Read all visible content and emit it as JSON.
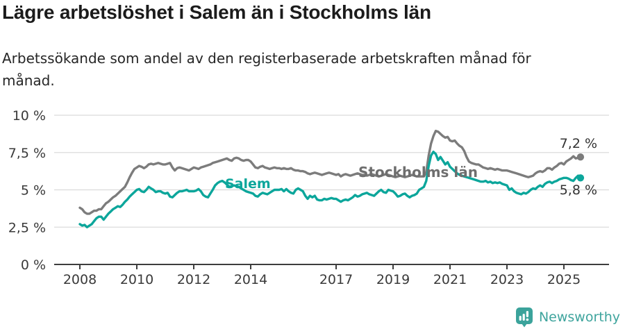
{
  "palette": {
    "background": "#ffffff",
    "grid": "#dbdbdb",
    "axis": "#3d3d3d",
    "tick_text": "#3a3a3a",
    "title_text": "#1b1b1b",
    "subtitle_text": "#262626",
    "end_label_text": "#333333",
    "brand_teal": "#3ba39b"
  },
  "footer": {
    "brand": "Newsworthy"
  },
  "chart_data": {
    "type": "line",
    "title": "Lägre arbetslöshet i Salem än i Stockholms län",
    "subtitle": "Arbetssökande som andel av den registerbaserade arbetskraften månad för\nmånad.",
    "ylabel": "",
    "xlabel": "",
    "ylim": [
      0,
      10
    ],
    "grid": "horizontal",
    "legend": "inline-labels",
    "x_unit": "monthly, first point January 2008",
    "x_start_year": 2008,
    "x_step_years": 0.0833333,
    "x_ticks": [
      {
        "v": 2008,
        "label": "2008"
      },
      {
        "v": 2010,
        "label": "2010"
      },
      {
        "v": 2012,
        "label": "2012"
      },
      {
        "v": 2014,
        "label": "2014"
      },
      {
        "v": 2017,
        "label": "2017"
      },
      {
        "v": 2019,
        "label": "2019"
      },
      {
        "v": 2021,
        "label": "2021"
      },
      {
        "v": 2023,
        "label": "2023"
      },
      {
        "v": 2025,
        "label": "2025"
      }
    ],
    "y_ticks": [
      {
        "v": 0,
        "label": "0 %"
      },
      {
        "v": 2.5,
        "label": "2,5 %"
      },
      {
        "v": 5,
        "label": "5 %"
      },
      {
        "v": 7.5,
        "label": "7,5 %"
      },
      {
        "v": 10,
        "label": "10 %"
      }
    ],
    "series": [
      {
        "name": "Stockholms län",
        "color": "#7c7c7c",
        "label_color": "#6e6e6e",
        "end_label": "7,2 %",
        "end_value": 7.2,
        "values": [
          3.8,
          3.7,
          3.5,
          3.4,
          3.4,
          3.5,
          3.6,
          3.6,
          3.7,
          3.7,
          3.9,
          4.1,
          4.2,
          4.35,
          4.5,
          4.6,
          4.75,
          4.9,
          5.05,
          5.2,
          5.5,
          5.85,
          6.15,
          6.4,
          6.5,
          6.6,
          6.55,
          6.45,
          6.55,
          6.7,
          6.75,
          6.7,
          6.75,
          6.8,
          6.75,
          6.7,
          6.7,
          6.75,
          6.8,
          6.5,
          6.3,
          6.45,
          6.5,
          6.45,
          6.4,
          6.35,
          6.3,
          6.4,
          6.5,
          6.45,
          6.4,
          6.5,
          6.55,
          6.6,
          6.65,
          6.7,
          6.8,
          6.85,
          6.9,
          6.95,
          7.0,
          7.05,
          7.1,
          7.0,
          6.95,
          7.1,
          7.15,
          7.1,
          7.0,
          6.95,
          7.0,
          7.0,
          6.9,
          6.7,
          6.5,
          6.45,
          6.55,
          6.6,
          6.5,
          6.45,
          6.4,
          6.45,
          6.5,
          6.45,
          6.45,
          6.4,
          6.45,
          6.4,
          6.4,
          6.45,
          6.35,
          6.3,
          6.3,
          6.25,
          6.25,
          6.2,
          6.1,
          6.05,
          6.1,
          6.15,
          6.1,
          6.05,
          6.0,
          6.05,
          6.1,
          6.15,
          6.1,
          6.05,
          6.0,
          6.05,
          5.9,
          6.0,
          6.05,
          6.0,
          5.95,
          6.0,
          6.05,
          6.1,
          6.05,
          6.0,
          6.0,
          5.95,
          6.0,
          6.05,
          6.0,
          5.95,
          5.9,
          5.95,
          6.0,
          6.05,
          6.0,
          5.95,
          5.9,
          5.85,
          5.9,
          5.95,
          5.9,
          5.85,
          5.9,
          5.95,
          6.0,
          5.95,
          5.9,
          5.9,
          5.9,
          5.9,
          6.2,
          7.3,
          8.1,
          8.6,
          8.95,
          8.9,
          8.75,
          8.6,
          8.5,
          8.55,
          8.3,
          8.25,
          8.3,
          8.1,
          7.95,
          7.85,
          7.6,
          7.2,
          6.9,
          6.8,
          6.75,
          6.7,
          6.7,
          6.6,
          6.5,
          6.45,
          6.4,
          6.45,
          6.4,
          6.35,
          6.4,
          6.35,
          6.3,
          6.3,
          6.3,
          6.25,
          6.2,
          6.15,
          6.1,
          6.05,
          6.0,
          5.95,
          5.9,
          5.85,
          5.9,
          5.95,
          6.1,
          6.2,
          6.25,
          6.2,
          6.3,
          6.45,
          6.45,
          6.35,
          6.5,
          6.6,
          6.75,
          6.8,
          6.7,
          6.9,
          7.0,
          7.1,
          7.25,
          7.1,
          7.15,
          7.2
        ]
      },
      {
        "name": "Salem",
        "color": "#0ca69b",
        "label_color": "#0ca69b",
        "end_label": "5,8 %",
        "end_value": 5.8,
        "values": [
          2.7,
          2.6,
          2.65,
          2.5,
          2.6,
          2.7,
          2.9,
          3.1,
          3.2,
          3.2,
          3.0,
          3.2,
          3.4,
          3.55,
          3.7,
          3.8,
          3.9,
          3.85,
          4.0,
          4.2,
          4.35,
          4.55,
          4.7,
          4.85,
          5.0,
          5.05,
          4.9,
          4.85,
          5.0,
          5.2,
          5.1,
          5.0,
          4.85,
          4.9,
          4.9,
          4.8,
          4.75,
          4.8,
          4.55,
          4.5,
          4.65,
          4.8,
          4.9,
          4.9,
          4.95,
          5.0,
          4.9,
          4.9,
          4.9,
          4.95,
          5.05,
          4.9,
          4.65,
          4.55,
          4.5,
          4.75,
          5.0,
          5.3,
          5.45,
          5.55,
          5.6,
          5.5,
          5.35,
          5.2,
          5.25,
          5.3,
          5.25,
          5.2,
          5.1,
          5.0,
          4.9,
          4.85,
          4.8,
          4.75,
          4.6,
          4.55,
          4.7,
          4.8,
          4.75,
          4.7,
          4.8,
          4.9,
          5.0,
          5.0,
          5.0,
          5.05,
          4.9,
          5.05,
          4.9,
          4.8,
          4.75,
          5.0,
          5.1,
          5.0,
          4.9,
          4.6,
          4.4,
          4.6,
          4.5,
          4.6,
          4.35,
          4.3,
          4.3,
          4.4,
          4.35,
          4.4,
          4.45,
          4.4,
          4.4,
          4.3,
          4.2,
          4.3,
          4.35,
          4.3,
          4.4,
          4.5,
          4.65,
          4.55,
          4.6,
          4.7,
          4.75,
          4.8,
          4.7,
          4.65,
          4.6,
          4.75,
          4.9,
          5.0,
          4.85,
          4.8,
          5.0,
          4.95,
          4.9,
          4.75,
          4.55,
          4.6,
          4.7,
          4.75,
          4.6,
          4.5,
          4.6,
          4.65,
          4.75,
          5.0,
          5.1,
          5.2,
          5.6,
          6.6,
          7.3,
          7.55,
          7.4,
          7.0,
          7.2,
          6.95,
          6.7,
          6.85,
          6.55,
          6.4,
          6.25,
          6.1,
          6.0,
          5.95,
          5.9,
          5.85,
          5.8,
          5.75,
          5.7,
          5.65,
          5.6,
          5.55,
          5.55,
          5.6,
          5.5,
          5.55,
          5.45,
          5.5,
          5.45,
          5.5,
          5.4,
          5.35,
          5.3,
          5.0,
          5.1,
          4.9,
          4.8,
          4.75,
          4.7,
          4.8,
          4.75,
          4.85,
          5.0,
          5.1,
          5.05,
          5.2,
          5.3,
          5.2,
          5.4,
          5.5,
          5.55,
          5.45,
          5.55,
          5.6,
          5.7,
          5.75,
          5.8,
          5.8,
          5.75,
          5.65,
          5.6,
          5.8,
          5.95,
          5.8
        ]
      }
    ]
  }
}
